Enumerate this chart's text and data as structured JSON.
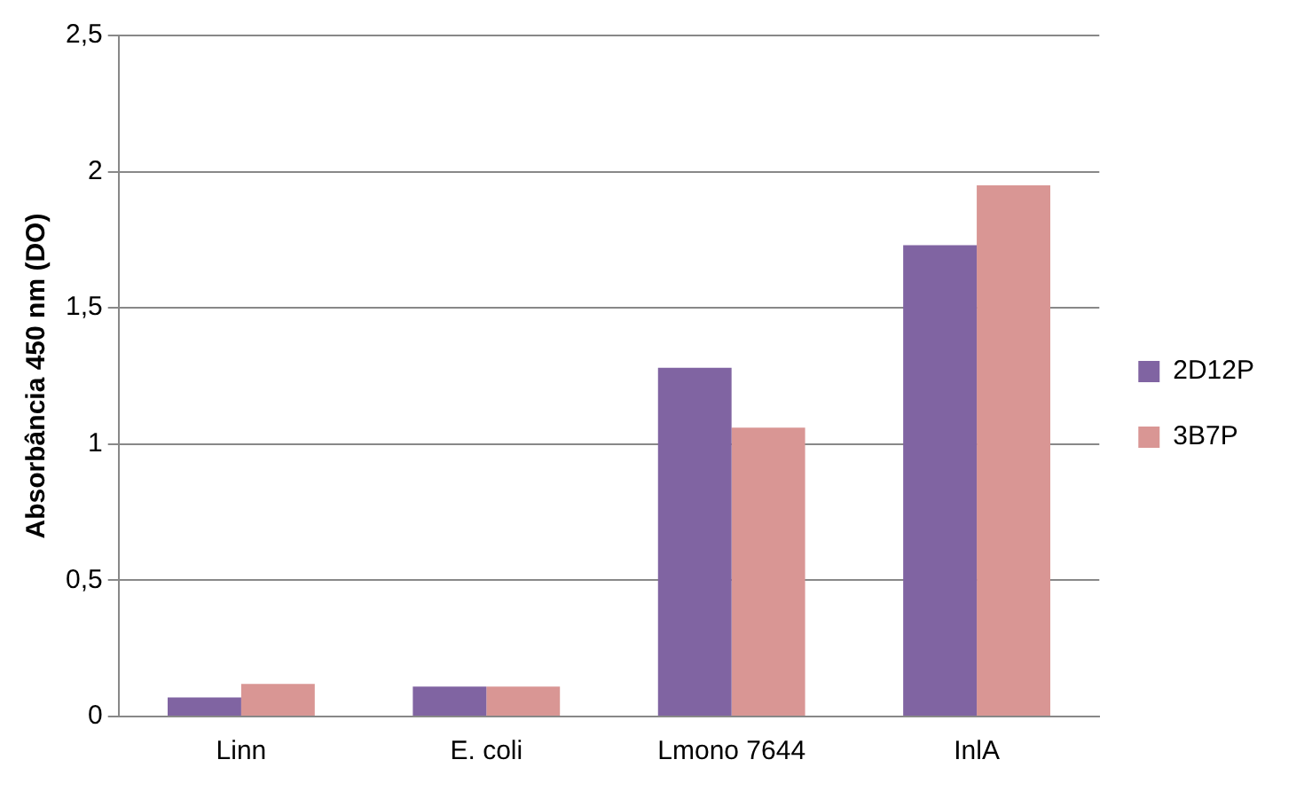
{
  "chart_data": {
    "type": "bar",
    "ylabel": "Absorbância 450 nm (DO)",
    "categories": [
      "Linn",
      "E. coli",
      "Lmono 7644",
      "InlA"
    ],
    "series": [
      {
        "name": "2D12P",
        "color": "#8064a2",
        "values": [
          0.07,
          0.11,
          1.28,
          1.73
        ]
      },
      {
        "name": "3B7P",
        "color": "#d99694",
        "values": [
          0.12,
          0.11,
          1.06,
          1.95
        ]
      }
    ],
    "ylim": [
      0,
      2.5
    ],
    "yticks": [
      0,
      {
        "value": 0.5,
        "label": "0,5"
      },
      1,
      {
        "value": 1.5,
        "label": "1,5"
      },
      2,
      {
        "value": 2.5,
        "label": "2,5"
      }
    ],
    "grid": "y",
    "legend": "right"
  }
}
